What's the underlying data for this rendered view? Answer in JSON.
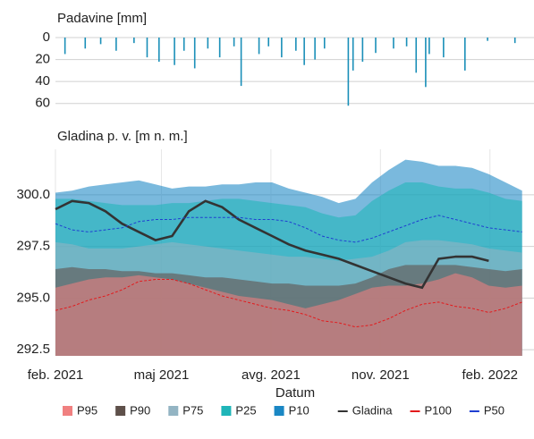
{
  "chart_data": [
    {
      "type": "bar",
      "title": "Padavine [mm]",
      "x": [
        "2021-02-09",
        "2021-02-26",
        "2021-03-11",
        "2021-03-24",
        "2021-04-08",
        "2021-04-19",
        "2021-04-29",
        "2021-05-12",
        "2021-05-20",
        "2021-05-29",
        "2021-06-09",
        "2021-06-19",
        "2021-07-01",
        "2021-07-07",
        "2021-07-22",
        "2021-07-30",
        "2021-08-10",
        "2021-08-22",
        "2021-08-29",
        "2021-09-07",
        "2021-09-15",
        "2021-10-05",
        "2021-10-09",
        "2021-10-17",
        "2021-10-28",
        "2021-11-12",
        "2021-11-23",
        "2021-12-01",
        "2021-12-09",
        "2021-12-12",
        "2021-12-24",
        "2022-01-11",
        "2022-01-30",
        "2022-02-22"
      ],
      "values": [
        15,
        10,
        6,
        12,
        5,
        18,
        22,
        25,
        12,
        28,
        10,
        18,
        8,
        44,
        15,
        8,
        18,
        12,
        25,
        20,
        10,
        62,
        30,
        22,
        14,
        10,
        8,
        32,
        45,
        15,
        18,
        30,
        3,
        5
      ],
      "color": "#1a8fb8",
      "ylim": [
        0,
        61
      ],
      "yticks": [
        0,
        20,
        40,
        60
      ],
      "y_inverted": true,
      "xlim": [
        "2021-02-01",
        "2022-03-10"
      ],
      "grid": true
    },
    {
      "type": "area",
      "title": "Gladina p. v. [m n. m.]",
      "x_label": "Datum",
      "x": [
        "2021-02-01",
        "2021-02-15",
        "2021-03-01",
        "2021-03-15",
        "2021-03-29",
        "2021-04-12",
        "2021-04-26",
        "2021-05-10",
        "2021-05-24",
        "2021-06-07",
        "2021-06-21",
        "2021-07-05",
        "2021-07-19",
        "2021-08-02",
        "2021-08-16",
        "2021-08-30",
        "2021-09-13",
        "2021-09-27",
        "2021-10-11",
        "2021-10-25",
        "2021-11-08",
        "2021-11-22",
        "2021-12-06",
        "2021-12-20",
        "2022-01-03",
        "2022-01-17",
        "2022-01-31",
        "2022-02-14",
        "2022-02-28"
      ],
      "series": [
        {
          "name": "P95",
          "color": "#f08080",
          "style": "area",
          "values": [
            295.5,
            295.7,
            295.9,
            296.0,
            296.0,
            296.1,
            296.0,
            295.9,
            295.7,
            295.5,
            295.3,
            295.1,
            295.0,
            294.9,
            294.7,
            294.5,
            294.7,
            294.9,
            295.2,
            295.5,
            295.6,
            295.6,
            295.7,
            295.9,
            296.2,
            296.0,
            295.6,
            295.5,
            295.6
          ]
        },
        {
          "name": "P90",
          "color": "#5e504a",
          "style": "area",
          "values": [
            296.4,
            296.5,
            296.4,
            296.4,
            296.3,
            296.3,
            296.2,
            296.2,
            296.1,
            296.0,
            296.0,
            295.9,
            295.8,
            295.7,
            295.7,
            295.6,
            295.6,
            295.6,
            295.7,
            296.0,
            296.4,
            296.6,
            296.6,
            296.6,
            296.6,
            296.5,
            296.4,
            296.3,
            296.4
          ]
        },
        {
          "name": "P75",
          "color": "#93b4c3",
          "style": "area",
          "values": [
            297.7,
            297.6,
            297.4,
            297.4,
            297.4,
            297.5,
            297.6,
            297.7,
            297.6,
            297.5,
            297.4,
            297.3,
            297.2,
            297.1,
            297.0,
            297.0,
            296.9,
            296.8,
            296.9,
            297.0,
            297.3,
            297.7,
            297.8,
            297.8,
            297.7,
            297.6,
            297.4,
            297.3,
            297.2
          ]
        },
        {
          "name": "P25",
          "color": "#1fb5b8",
          "style": "area",
          "values": [
            299.8,
            299.8,
            299.7,
            299.6,
            299.5,
            299.5,
            299.5,
            299.6,
            299.6,
            299.7,
            299.8,
            299.8,
            299.7,
            299.6,
            299.5,
            299.4,
            299.1,
            298.9,
            299.0,
            299.7,
            300.2,
            300.6,
            300.6,
            300.4,
            300.3,
            300.3,
            300.1,
            299.8,
            299.7
          ]
        },
        {
          "name": "P10",
          "color": "#1a87c4",
          "style": "area",
          "values": [
            300.1,
            300.2,
            300.4,
            300.5,
            300.6,
            300.7,
            300.5,
            300.3,
            300.4,
            300.4,
            300.5,
            300.5,
            300.6,
            300.6,
            300.3,
            300.1,
            299.9,
            299.6,
            299.8,
            300.6,
            301.2,
            301.7,
            301.6,
            301.4,
            301.4,
            301.3,
            301.0,
            300.6,
            300.2
          ]
        },
        {
          "name": "Gladina",
          "color": "#333333",
          "style": "line",
          "values": [
            299.3,
            299.7,
            299.6,
            299.2,
            298.6,
            298.2,
            297.8,
            298.0,
            299.2,
            299.7,
            299.4,
            298.8,
            298.4,
            298.0,
            297.6,
            297.3,
            297.1,
            296.9,
            296.6,
            296.3,
            296.0,
            295.7,
            295.5,
            296.9,
            297.0,
            297.0,
            296.8,
            null,
            null
          ]
        },
        {
          "name": "P100",
          "color": "#e31a1c",
          "style": "dashed",
          "values": [
            294.4,
            294.6,
            294.9,
            295.1,
            295.4,
            295.8,
            295.9,
            295.9,
            295.7,
            295.4,
            295.1,
            294.9,
            294.7,
            294.5,
            294.4,
            294.2,
            293.9,
            293.8,
            293.6,
            293.7,
            294.0,
            294.4,
            294.7,
            294.8,
            294.6,
            294.5,
            294.3,
            294.5,
            294.8
          ]
        },
        {
          "name": "P50",
          "color": "#1f3fd1",
          "style": "dashed",
          "values": [
            298.6,
            298.3,
            298.2,
            298.3,
            298.4,
            298.7,
            298.8,
            298.8,
            298.9,
            298.9,
            298.9,
            298.9,
            298.8,
            298.8,
            298.7,
            298.4,
            298.0,
            297.8,
            297.7,
            297.9,
            298.2,
            298.5,
            298.8,
            299.0,
            298.8,
            298.6,
            298.4,
            298.3,
            298.2
          ]
        }
      ],
      "ylim": [
        292.2,
        302.2
      ],
      "yticks": [
        {
          "value": 300,
          "label": "300.0"
        },
        {
          "value": 297.5,
          "label": "297.5"
        },
        {
          "value": 295,
          "label": "295.0"
        },
        {
          "value": 292.5,
          "label": "292.5"
        }
      ],
      "xlim": [
        "2021-02-01",
        "2022-03-10"
      ],
      "xticks": [
        {
          "value": "2021-02-01",
          "label": "feb. 2021"
        },
        {
          "value": "2021-05-01",
          "label": "maj 2021"
        },
        {
          "value": "2021-08-01",
          "label": "avg. 2021"
        },
        {
          "value": "2021-11-01",
          "label": "nov. 2021"
        },
        {
          "value": "2022-02-01",
          "label": "feb. 2022"
        }
      ],
      "grid": true,
      "legend": "bottom"
    }
  ]
}
